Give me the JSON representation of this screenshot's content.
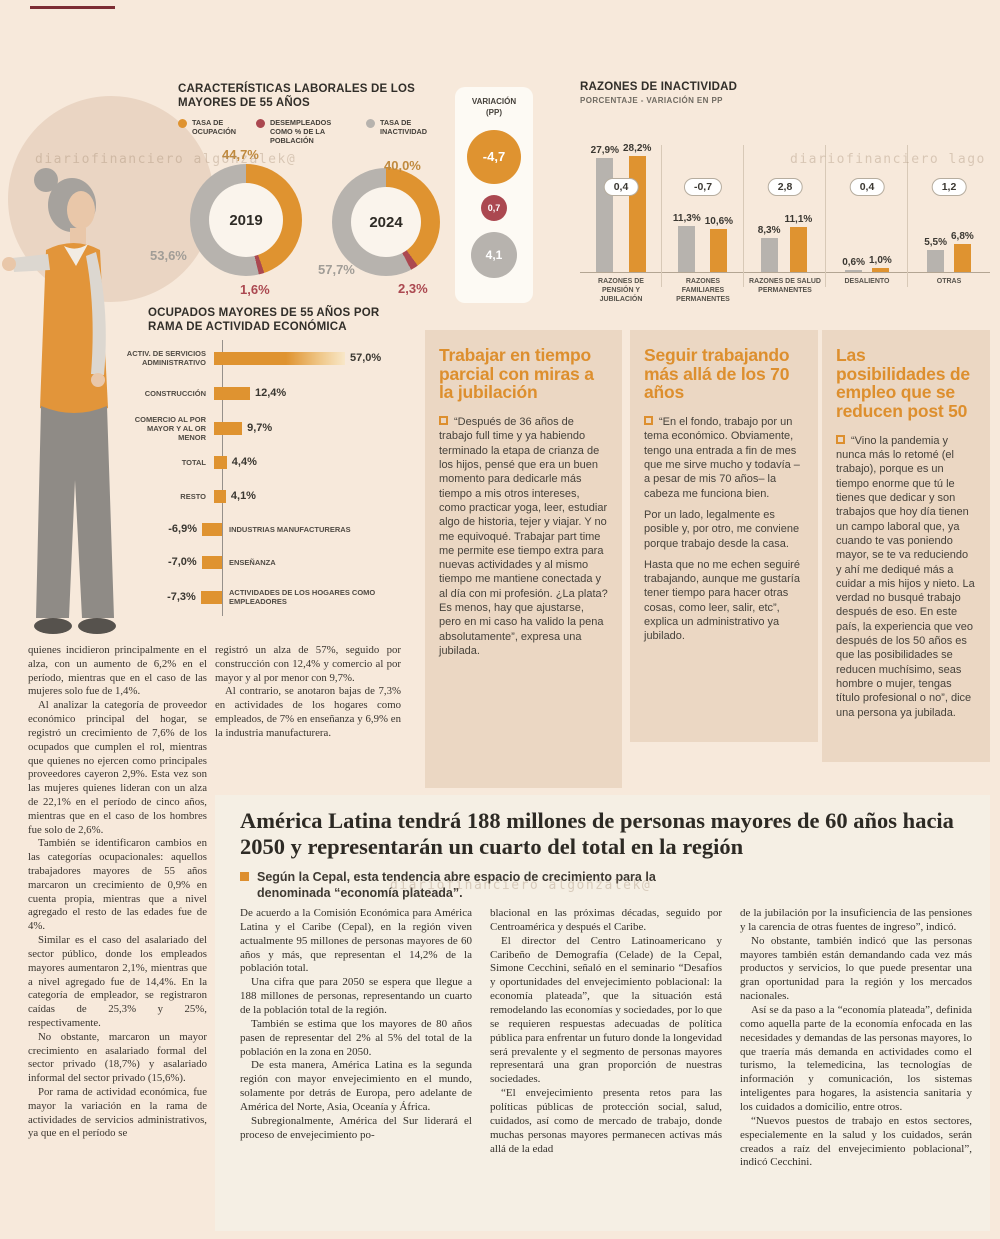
{
  "colors": {
    "orange": "#df9330",
    "red": "#ab4850",
    "gray": "#b7b3ae"
  },
  "decor": {
    "watermark_top_left": "diariofinanciero algonzalek@",
    "watermark_top_right": "diariofinanciero lago",
    "watermark_middle": "diariofinanciero algonzalek@"
  },
  "chart_data": [
    {
      "type": "pie",
      "title": "CARACTERÍSTICAS LABORALES DE LOS MAYORES DE 55 AÑOS",
      "legend": [
        {
          "label": "TASA DE OCUPACIÓN",
          "color": "#df9330"
        },
        {
          "label": "DESEMPLEADOS COMO % DE LA POBLACIÓN",
          "color": "#ab4850"
        },
        {
          "label": "TASA DE INACTIVIDAD",
          "color": "#b7b3ae"
        }
      ],
      "donuts": [
        {
          "year": "2019",
          "ocupacion": 44.7,
          "desempleados": 1.6,
          "inactividad": 53.6,
          "ocupacion_label": "44,7%",
          "desempleados_label": "1,6%",
          "inactividad_label": "53,6%"
        },
        {
          "year": "2024",
          "ocupacion": 40.0,
          "desempleados": 2.3,
          "inactividad": 57.7,
          "ocupacion_label": "40,0%",
          "desempleados_label": "2,3%",
          "inactividad_label": "57,7%"
        }
      ],
      "variation_panel": {
        "title": "VARIACIÓN (PP)",
        "items": [
          {
            "series": "tasa de ocupación",
            "value": -4.7,
            "label": "-4,7"
          },
          {
            "series": "desempleados",
            "value": 0.7,
            "label": "0,7"
          },
          {
            "series": "tasa de inactividad",
            "value": 4.1,
            "label": "4,1"
          }
        ]
      }
    },
    {
      "type": "bar",
      "title": "RAZONES DE INACTIVIDAD",
      "subtitle": "PORCENTAJE - VARIACIÓN EN PP",
      "ylim": [
        0,
        30
      ],
      "groups": [
        {
          "label": "RAZONES DE PENSIÓN Y JUBILACIÓN",
          "v1": 27.9,
          "v2": 28.2,
          "v1_label": "27,9%",
          "v2_label": "28,2%",
          "var_label": "0,4"
        },
        {
          "label": "RAZONES FAMILIARES PERMANENTES",
          "v1": 11.3,
          "v2": 10.6,
          "v1_label": "11,3%",
          "v2_label": "10,6%",
          "var_label": "-0,7"
        },
        {
          "label": "RAZONES DE SALUD PERMANENTES",
          "v1": 8.3,
          "v2": 11.1,
          "v1_label": "8,3%",
          "v2_label": "11,1%",
          "var_label": "2,8"
        },
        {
          "label": "DESALIENTO",
          "v1": 0.6,
          "v2": 1.0,
          "v1_label": "0,6%",
          "v2_label": "1,0%",
          "var_label": "0,4"
        },
        {
          "label": "OTRAS",
          "v1": 5.5,
          "v2": 6.8,
          "v1_label": "5,5%",
          "v2_label": "6,8%",
          "var_label": "1,2"
        }
      ]
    },
    {
      "type": "bar",
      "title": "OCUPADOS MAYORES DE 55 AÑOS POR RAMA DE ACTIVIDAD ECONÓMICA",
      "rows": [
        {
          "label": "ACTIV. DE SERVICIOS ADMINISTRATIVO",
          "value": 57.0,
          "display": "57,0%"
        },
        {
          "label": "CONSTRUCCIÓN",
          "value": 12.4,
          "display": "12,4%"
        },
        {
          "label": "COMERCIO AL POR MAYOR Y AL OR MENOR",
          "value": 9.7,
          "display": "9,7%"
        },
        {
          "label": "TOTAL",
          "value": 4.4,
          "display": "4,4%"
        },
        {
          "label": "RESTO",
          "value": 4.1,
          "display": "4,1%"
        },
        {
          "label": "INDUSTRIAS MANUFACTURERAS",
          "value": -6.9,
          "display": "-6,9%"
        },
        {
          "label": "ENSEÑANZA",
          "value": -7.0,
          "display": "-7,0%"
        },
        {
          "label": "ACTIVIDADES DE LOS HOGARES COMO EMPLEADORES",
          "value": -7.3,
          "display": "-7,3%"
        }
      ]
    }
  ],
  "quotes": [
    {
      "title": "Trabajar en tiempo parcial con miras a la jubilación",
      "paragraphs": [
        "“Después de 36 años de trabajo full time y ya habiendo terminado la etapa de crianza de los hijos, pensé que era un buen momento para dedicarle más tiempo a mis otros intereses, como practicar yoga, leer, estudiar algo de historia, tejer y viajar. Y no me equivoqué. Trabajar part time me permite ese tiempo extra para nuevas actividades y al mismo tiempo me mantiene conectada y al día con mi profesión. ¿La plata? Es menos, hay que ajustarse, pero en mi caso ha valido la pena absolutamente”, expresa una jubilada."
      ]
    },
    {
      "title": "Seguir trabajando más allá de los 70 años",
      "paragraphs": [
        "“En el fondo, trabajo por un tema económico. Obviamente, tengo una entrada a fin de mes que me sirve mucho y todavía –a pesar de mis 70 años– la cabeza me funciona bien.",
        "Por un lado, legalmente es posible y, por otro, me conviene porque trabajo desde la casa.",
        "Hasta que no me echen seguiré trabajando, aunque me gustaría tener tiempo para hacer otras cosas, como leer, salir, etc”, explica un administrativo ya jubilado."
      ]
    },
    {
      "title": "Las posibilidades de empleo que se reducen post 50",
      "paragraphs": [
        "“Vino la pandemia y nunca más lo retomé (el trabajo), porque es un tiempo enorme que tú le tienes que dedicar y son trabajos que hoy día tienen un campo laboral que, ya cuando te vas poniendo mayor, se te va reduciendo y ahí me dediqué más a cuidar a mis hijos y nieto. La verdad no busqué trabajo después de eso. En este país, la experiencia que veo después de los 50 años es que las posibilidades se reducen muchísimo, seas hombre o mujer, tengas título profesional o no”, dice una persona ya jubilada."
      ]
    }
  ],
  "left_column": {
    "paragraphs": [
      "quienes incidieron principalmente en el alza, con un aumento de 6,2% en el período, mientras que en el caso de las mujeres solo fue de 1,4%.",
      "Al analizar la categoría de proveedor económico principal del hogar, se registró un crecimiento de 7,6% de los ocupados que cumplen el rol, mientras que quienes no ejercen como principales proveedores cayeron 2,9%. Esta vez son las mujeres quienes lideran con un alza de 22,1% en el período de cinco años, mientras que en el caso de los hombres fue solo de 2,6%.",
      "También se identificaron cambios en las categorías ocupacionales: aquellos trabajadores mayores de 55 años marcaron un crecimiento de 0,9% en cuenta propia, mientras que a nivel agregado el resto de las edades fue de 4%.",
      "Similar es el caso del asalariado del sector público, donde los empleados mayores aumentaron 2,1%, mientras que a nivel agregado fue de 14,4%. En la categoría de empleador, se registraron caídas de 25,3% y 25%, respectivamente.",
      "No obstante, marcaron un mayor crecimiento en asalariado formal del sector privado (18,7%) y asalariado informal del sector privado (15,6%).",
      "Por rama de actividad económica, fue mayor la variación en la rama de actividades de servicios administrativos, ya que en el período se"
    ]
  },
  "mid_column": {
    "paragraphs": [
      "registró un alza de 57%, seguido por construcción con 12,4% y comercio al por mayor y al por menor con 9,7%.",
      "Al contrario, se anotaron bajas de 7,3% en actividades de los hogares como empleados, de 7% en enseñanza y 6,9% en la industria manufacturera."
    ]
  },
  "article": {
    "headline": "América Latina tendrá 188 millones de personas mayores de 60 años hacia 2050 y representarán un cuarto del total en la región",
    "subtitle": "Según la Cepal, esta tendencia abre espacio de crecimiento para la denominada “economía plateada”.",
    "columns": [
      {
        "paragraphs": [
          "De acuerdo a la Comisión Económica para América Latina y el Caribe (Cepal), en la región viven actualmente 95 millones de personas mayores de 60 años y más, que representan el 14,2% de la población total.",
          "Una cifra que para 2050 se espera que llegue a 188 millones de personas, representando un cuarto de la población total de la región.",
          "También se estima que los mayores de 80 años pasen de representar del 2% al 5% del total de la población en la zona en 2050.",
          "De esta manera, América Latina es la segunda región con mayor envejecimiento en el mundo, solamente por detrás de Europa, pero adelante de América del Norte, Asia, Oceanía y África.",
          "Subregionalmente, América del Sur liderará el proceso de envejecimiento po-"
        ]
      },
      {
        "paragraphs": [
          "blacional en las próximas décadas, seguido por Centroamérica y después el Caribe.",
          "El director del Centro Latinoamericano y Caribeño de Demografía (Celade) de la Cepal, Simone Cecchini, señaló en el seminario “Desafíos y oportunidades del envejecimiento poblacional: la economía plateada”, que la situación está remodelando las economías y sociedades, por lo que se requieren respuestas adecuadas de política pública para enfrentar un futuro donde la longevidad será prevalente y el segmento de personas mayores representará una gran proporción de nuestras sociedades.",
          "“El envejecimiento presenta retos para las políticas públicas de protección social, salud, cuidados, así como de mercado de trabajo, donde muchas personas mayores permanecen activas más allá de la edad"
        ]
      },
      {
        "paragraphs": [
          "de la jubilación por la insuficiencia de las pensiones y la carencia de otras fuentes de ingreso”, indicó.",
          "No obstante, también indicó que las personas mayores también están demandando cada vez más productos y servicios, lo que puede presentar una gran oportunidad para la región y los mercados nacionales.",
          "Así se da paso a la “economía plateada”, definida como aquella parte de la economía enfocada en las necesidades y demandas de las personas mayores, lo que traería más demanda en actividades como el turismo, la telemedicina, las tecnologías de información y comunicación, los sistemas inteligentes para hogares, la asistencia sanitaria y los cuidados a domicilio, entre otros.",
          "“Nuevos puestos de trabajo en estos sectores, especialemente en la salud y los cuidados, serán creados a raíz del envejecimiento poblacional”, indicó Cecchini."
        ]
      }
    ]
  }
}
